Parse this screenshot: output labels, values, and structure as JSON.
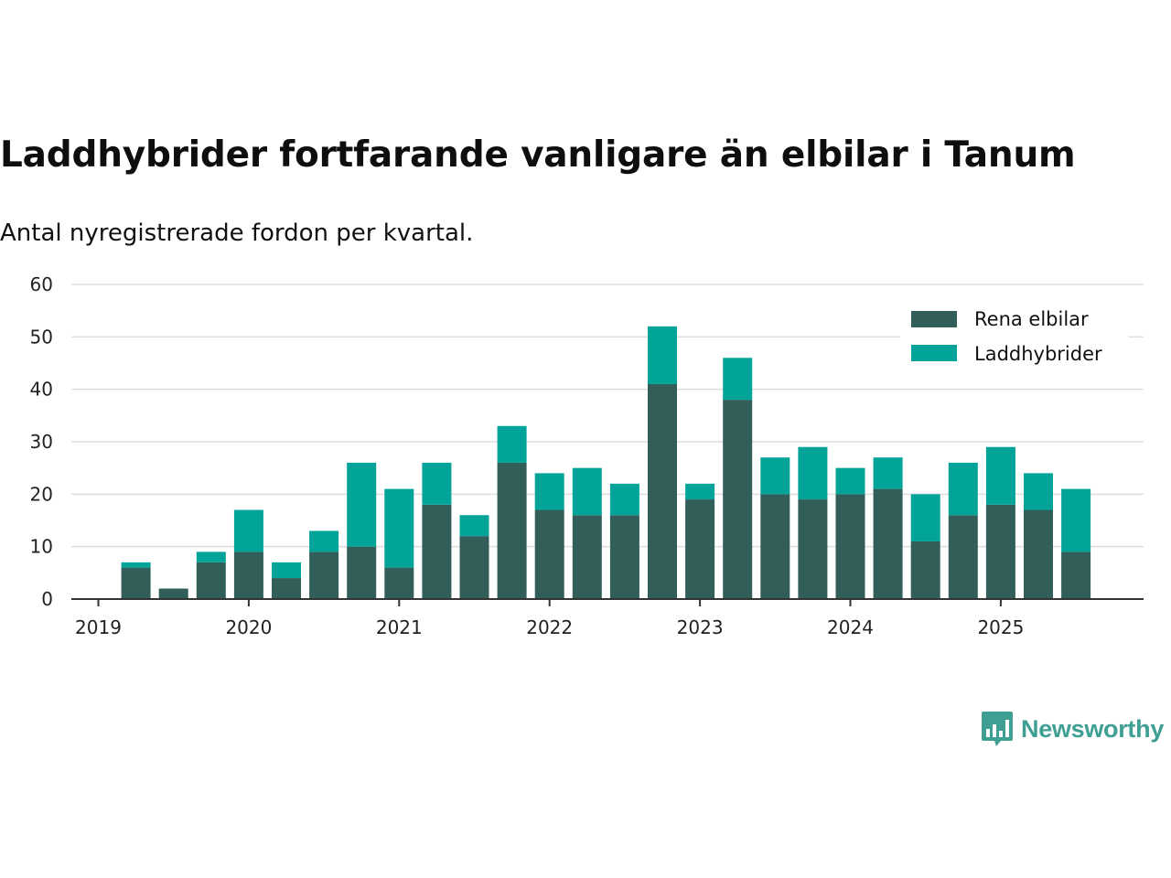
{
  "header": {
    "title": "Laddhybrider fortfarande vanligare än elbilar i Tanum",
    "subtitle": "Antal nyregistrerade fordon per kvartal."
  },
  "colors": {
    "rena_elbilar": "#325e59",
    "laddhybrider": "#02a398",
    "gridline": "#dddddd",
    "axis": "#333333",
    "brand": "#3f9f93"
  },
  "brand": {
    "name": "Newsworthy",
    "icon": "bar-chart-speech-bubble-icon"
  },
  "chart_data": {
    "type": "bar",
    "stacked": true,
    "x": [
      "2019-Q1",
      "2019-Q2",
      "2019-Q3",
      "2019-Q4",
      "2020-Q1",
      "2020-Q2",
      "2020-Q3",
      "2020-Q4",
      "2021-Q1",
      "2021-Q2",
      "2021-Q3",
      "2021-Q4",
      "2022-Q1",
      "2022-Q2",
      "2022-Q3",
      "2022-Q4",
      "2023-Q1",
      "2023-Q2",
      "2023-Q3",
      "2023-Q4",
      "2024-Q1",
      "2024-Q2",
      "2024-Q3",
      "2024-Q4",
      "2025-Q1",
      "2025-Q2",
      "2025-Q3"
    ],
    "series": [
      {
        "name": "Rena elbilar",
        "values": [
          0,
          6,
          2,
          7,
          9,
          4,
          9,
          10,
          6,
          18,
          12,
          26,
          17,
          16,
          16,
          41,
          19,
          38,
          20,
          19,
          20,
          21,
          11,
          16,
          18,
          17,
          9
        ]
      },
      {
        "name": "Laddhybrider",
        "values": [
          0,
          1,
          0,
          2,
          8,
          3,
          4,
          16,
          15,
          8,
          4,
          7,
          7,
          9,
          6,
          11,
          3,
          8,
          7,
          10,
          5,
          6,
          9,
          10,
          11,
          7,
          12
        ]
      }
    ],
    "x_tick_labels": [
      "2019",
      "2020",
      "2021",
      "2022",
      "2023",
      "2024",
      "2025"
    ],
    "y_tick_labels": [
      "0",
      "10",
      "20",
      "30",
      "40",
      "50",
      "60"
    ],
    "ylim": [
      0,
      60
    ],
    "grid": true,
    "legend_position": "top-right",
    "xlabel": "",
    "ylabel": ""
  }
}
